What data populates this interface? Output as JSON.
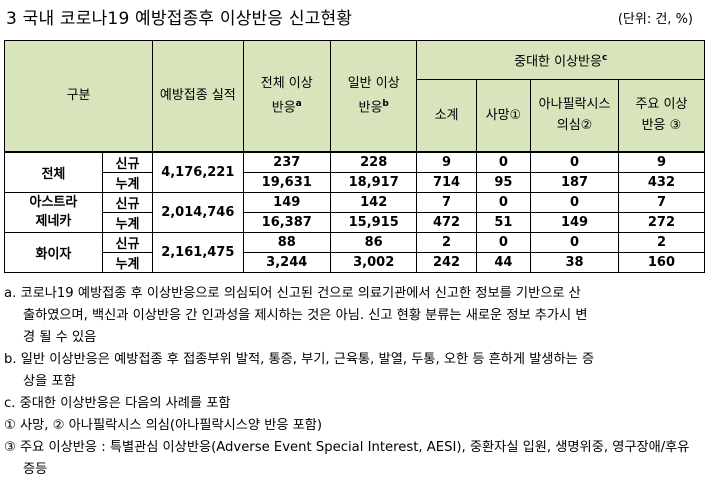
{
  "title": "3  국내 코로나19 예방접종후 이상반응 신고현황",
  "unit": "(단위: 건, %)",
  "headers": {
    "category": "구분",
    "vaccinated": "예방접종 실적",
    "total_ae": "전체 이상반응",
    "total_ae_sup": "a",
    "general_ae": "일반 이상반응",
    "general_ae_sup": "b",
    "serious_ae": "중대한 이상반응",
    "serious_ae_sup": "c",
    "subtotal": "소계",
    "death": "사망①",
    "anaphylaxis": "아나필락시스 의심②",
    "major": "주요 이상반응 ③"
  },
  "rows": [
    {
      "group": "전체",
      "vaccinated": "4,176,221",
      "new": {
        "label": "신규",
        "total": "237",
        "general": "228",
        "subtotal": "9",
        "death": "0",
        "anaphylaxis": "0",
        "major": "9"
      },
      "cum": {
        "label": "누계",
        "total": "19,631",
        "general": "18,917",
        "subtotal": "714",
        "death": "95",
        "anaphylaxis": "187",
        "major": "432"
      }
    },
    {
      "group": "아스트라제네카",
      "vaccinated": "2,014,746",
      "new": {
        "label": "신규",
        "total": "149",
        "general": "142",
        "subtotal": "7",
        "death": "0",
        "anaphylaxis": "0",
        "major": "7"
      },
      "cum": {
        "label": "누계",
        "total": "16,387",
        "general": "15,915",
        "subtotal": "472",
        "death": "51",
        "anaphylaxis": "149",
        "major": "272"
      }
    },
    {
      "group": "화이자",
      "vaccinated": "2,161,475",
      "new": {
        "label": "신규",
        "total": "88",
        "general": "86",
        "subtotal": "2",
        "death": "0",
        "anaphylaxis": "0",
        "major": "2"
      },
      "cum": {
        "label": "누계",
        "total": "3,244",
        "general": "3,002",
        "subtotal": "242",
        "death": "44",
        "anaphylaxis": "38",
        "major": "160"
      }
    }
  ],
  "group_lines": {
    "astra_1": "아스트라",
    "astra_2": "제네카"
  },
  "notes": {
    "a_1": "a. 코로나19 예방접종 후 이상반응으로 의심되어 신고된 건으로 의료기관에서 신고한 정보를 기반으로 산",
    "a_2": "출하였으며, 백신과 이상반응 간 인과성을 제시하는 것은 아님. 신고 현황 분류는 새로운 정보 추가시 변",
    "a_3": "경 될 수 있음",
    "b_1": "b. 일반 이상반응은 예방접종 후 접종부위 발적, 통증, 부기, 근육통, 발열, 두통, 오한 등 흔하게 발생하는 증",
    "b_2": "상을 포함",
    "c_1": "c. 중대한 이상반응은 다음의 사례를 포함",
    "c_2": "① 사망, ② 아나필락시스 의심(아나필락시스양 반응 포함)",
    "c_3": "③ 주요 이상반응 : 특별관심 이상반응(Adverse Event Special Interest, AESI), 중환자실 입원, 생명위중, 영구장애/후유",
    "c_4": "증등"
  }
}
